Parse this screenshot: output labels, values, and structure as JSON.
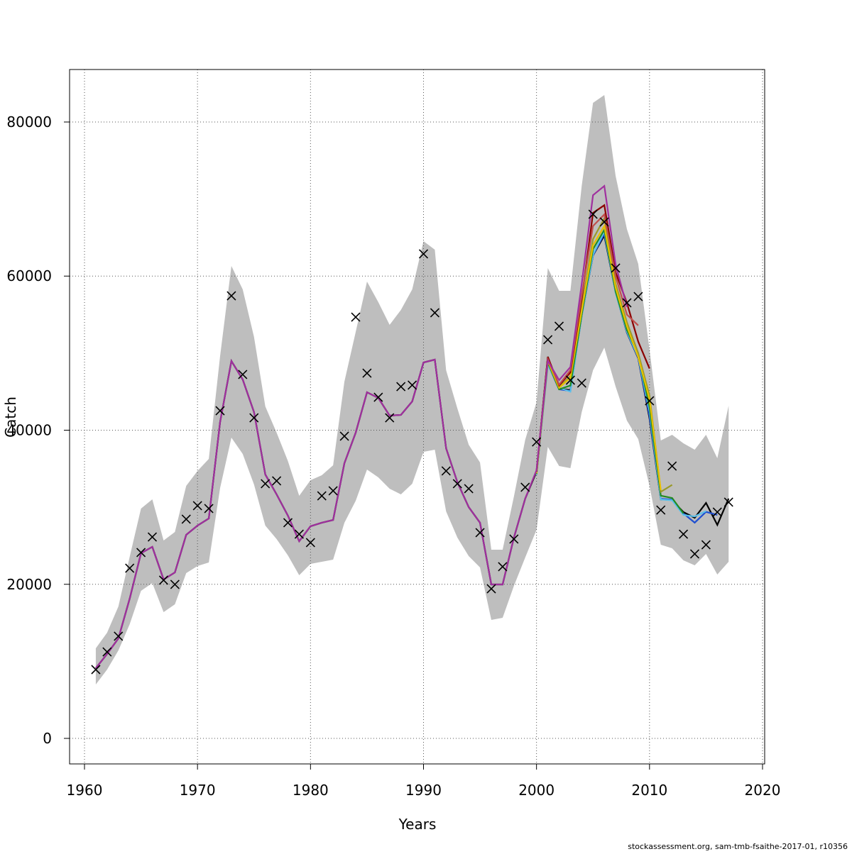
{
  "chart_data": {
    "type": "line",
    "xlabel": "Years",
    "ylabel": "Catch",
    "footer": "stockassessment.org, sam-tmb-fsaithe-2017-01, r10356",
    "x": [
      1961,
      1962,
      1963,
      1964,
      1965,
      1966,
      1967,
      1968,
      1969,
      1970,
      1971,
      1972,
      1973,
      1974,
      1975,
      1976,
      1977,
      1978,
      1979,
      1980,
      1981,
      1982,
      1983,
      1984,
      1985,
      1986,
      1987,
      1988,
      1989,
      1990,
      1991,
      1992,
      1993,
      1994,
      1995,
      1996,
      1997,
      1998,
      1999,
      2000,
      2001,
      2002,
      2003,
      2004,
      2005,
      2006,
      2007,
      2008,
      2009,
      2010,
      2011,
      2012,
      2013,
      2014,
      2015,
      2016,
      2017
    ],
    "xlim": [
      1958.68,
      2020.19
    ],
    "ylim": [
      -3314,
      86812
    ],
    "xticks": [
      1960,
      1970,
      1980,
      1990,
      2000,
      2010,
      2020
    ],
    "yticks": [
      0,
      20000,
      40000,
      60000,
      80000
    ],
    "grid": true,
    "band": {
      "color": "#bebebe",
      "upper": [
        11690,
        13720,
        17120,
        23570,
        29830,
        31020,
        25680,
        26790,
        32770,
        34710,
        36270,
        49620,
        61310,
        58270,
        52110,
        43080,
        39680,
        36000,
        31480,
        33510,
        34150,
        35440,
        46310,
        52750,
        59290,
        56620,
        53670,
        55600,
        58270,
        64530,
        63430,
        47780,
        42810,
        38110,
        35810,
        24490,
        24490,
        31390,
        38760,
        43640,
        61040,
        58090,
        58090,
        71710,
        82490,
        83500,
        73000,
        66100,
        61590,
        50450,
        38670,
        39400,
        38300,
        37470,
        39400,
        36360,
        43180
      ],
      "lower": [
        7000,
        8930,
        11420,
        14820,
        19150,
        20160,
        16390,
        17400,
        21450,
        22370,
        22830,
        32500,
        39030,
        36920,
        32960,
        27620,
        25870,
        23750,
        21170,
        22650,
        22920,
        23200,
        27990,
        30840,
        34890,
        33880,
        32410,
        31670,
        33050,
        37190,
        37470,
        29460,
        26050,
        23660,
        22190,
        15370,
        15650,
        19790,
        23480,
        27070,
        37840,
        35350,
        35070,
        42350,
        47780,
        50730,
        45660,
        41240,
        38850,
        32770,
        25130,
        24670,
        23110,
        22460,
        23940,
        21270,
        22920
      ]
    },
    "observations": {
      "marker": "x",
      "color": "#000000",
      "values": [
        8930,
        11230,
        13260,
        22090,
        24120,
        26140,
        20530,
        19980,
        28450,
        30200,
        29830,
        42530,
        57440,
        47230,
        41610,
        33050,
        33420,
        27990,
        26510,
        25410,
        31480,
        32130,
        39220,
        54680,
        47410,
        44280,
        41610,
        45660,
        45850,
        62880,
        55240,
        34710,
        33050,
        32410,
        26700,
        19420,
        22280,
        25870,
        32590,
        38480,
        51740,
        53490,
        46490,
        46120,
        68030,
        67020,
        61040,
        56530,
        57350,
        43820,
        29640,
        35350,
        26510,
        23940,
        25130,
        29370,
        30660
      ]
    },
    "series": [
      {
        "color": "#000000",
        "values": [
          9110,
          10960,
          12980,
          18140,
          24030,
          24860,
          20620,
          21540,
          26420,
          27620,
          28540,
          41060,
          48980,
          46580,
          42350,
          34250,
          31670,
          28910,
          25590,
          27530,
          27990,
          28350,
          35720,
          39680,
          44920,
          44190,
          41890,
          41980,
          43730,
          48790,
          49160,
          37650,
          33240,
          30020,
          27990,
          19980,
          19980,
          26050,
          31120,
          34620,
          49530,
          45390,
          45200,
          54870,
          62690,
          65270,
          57910,
          52660,
          49340,
          41520,
          31020,
          30930,
          29370,
          28630,
          30560,
          27710,
          31120
        ]
      },
      {
        "color": "#1f4fd0",
        "values": [
          null,
          null,
          null,
          null,
          null,
          null,
          null,
          null,
          null,
          null,
          null,
          null,
          null,
          null,
          null,
          null,
          null,
          null,
          null,
          null,
          null,
          null,
          null,
          null,
          null,
          null,
          null,
          null,
          null,
          null,
          null,
          null,
          null,
          null,
          null,
          null,
          null,
          null,
          null,
          34300,
          48600,
          45300,
          45100,
          54900,
          62700,
          65500,
          57900,
          52700,
          49400,
          41800,
          31100,
          31000,
          29200,
          28000,
          29400,
          29000,
          null
        ]
      },
      {
        "color": "#5bc0eb",
        "values": [
          null,
          null,
          null,
          null,
          null,
          null,
          null,
          null,
          null,
          null,
          null,
          null,
          null,
          null,
          null,
          null,
          null,
          null,
          null,
          null,
          null,
          null,
          null,
          null,
          null,
          null,
          null,
          null,
          null,
          null,
          null,
          null,
          null,
          null,
          null,
          null,
          null,
          null,
          null,
          34200,
          48500,
          45500,
          45000,
          54800,
          62800,
          65800,
          57800,
          52800,
          49500,
          42500,
          31000,
          30900,
          29000,
          28800,
          29500,
          null,
          null
        ]
      },
      {
        "color": "#228b22",
        "values": [
          null,
          null,
          null,
          null,
          null,
          null,
          null,
          null,
          null,
          null,
          null,
          null,
          null,
          null,
          null,
          null,
          null,
          null,
          null,
          null,
          null,
          null,
          null,
          null,
          null,
          null,
          null,
          null,
          null,
          null,
          null,
          null,
          null,
          null,
          null,
          null,
          null,
          null,
          null,
          34300,
          48800,
          45300,
          45800,
          55000,
          63500,
          66000,
          58000,
          53000,
          49800,
          43000,
          31500,
          31200,
          29200,
          null,
          null,
          null,
          null
        ]
      },
      {
        "color": "#9a9a2a",
        "values": [
          null,
          null,
          null,
          null,
          null,
          null,
          null,
          null,
          null,
          null,
          null,
          null,
          null,
          null,
          null,
          null,
          null,
          null,
          null,
          null,
          null,
          null,
          null,
          null,
          null,
          null,
          null,
          null,
          null,
          null,
          null,
          null,
          null,
          null,
          null,
          null,
          null,
          null,
          null,
          34500,
          49300,
          45600,
          47000,
          56000,
          64800,
          67500,
          59000,
          54000,
          50000,
          44500,
          32000,
          32900,
          null,
          null,
          null,
          null,
          null
        ]
      },
      {
        "color": "#e8c000",
        "values": [
          null,
          null,
          null,
          null,
          null,
          null,
          null,
          null,
          null,
          null,
          null,
          null,
          null,
          null,
          null,
          null,
          null,
          null,
          null,
          null,
          null,
          null,
          null,
          null,
          null,
          null,
          null,
          null,
          null,
          null,
          null,
          null,
          null,
          null,
          null,
          null,
          null,
          null,
          null,
          34400,
          49000,
          45500,
          46800,
          55500,
          64000,
          66500,
          58500,
          53500,
          49500,
          44000,
          32200,
          null,
          null,
          null,
          null,
          null,
          null
        ]
      },
      {
        "color": "#8b0000",
        "values": [
          null,
          null,
          null,
          null,
          null,
          null,
          null,
          null,
          null,
          null,
          null,
          null,
          null,
          null,
          null,
          null,
          null,
          null,
          null,
          null,
          null,
          null,
          null,
          null,
          null,
          null,
          null,
          null,
          null,
          null,
          null,
          null,
          null,
          null,
          null,
          null,
          null,
          null,
          null,
          34600,
          49500,
          45800,
          47500,
          57000,
          68200,
          69200,
          60500,
          56500,
          51500,
          48000,
          null,
          null,
          null,
          null,
          null,
          null,
          null
        ]
      },
      {
        "color": "#c0504d",
        "values": [
          null,
          null,
          null,
          null,
          null,
          null,
          null,
          null,
          null,
          null,
          null,
          null,
          null,
          null,
          null,
          null,
          null,
          null,
          null,
          null,
          null,
          null,
          null,
          null,
          null,
          null,
          null,
          null,
          null,
          null,
          null,
          null,
          null,
          null,
          null,
          null,
          null,
          null,
          null,
          34700,
          49200,
          45900,
          47800,
          57500,
          66500,
          68000,
          60000,
          55000,
          53600,
          null,
          null,
          null,
          null,
          null,
          null,
          null,
          null
        ]
      },
      {
        "color": "#a0309e",
        "values": [
          9110,
          10960,
          12980,
          18140,
          24030,
          24860,
          20620,
          21540,
          26420,
          27620,
          28540,
          41060,
          48980,
          46580,
          42350,
          34250,
          31670,
          28910,
          25590,
          27530,
          27990,
          28350,
          35720,
          39680,
          44920,
          44190,
          41890,
          41980,
          43730,
          48790,
          49160,
          37650,
          33240,
          30020,
          27990,
          19980,
          19980,
          26050,
          31120,
          34800,
          49000,
          46500,
          48200,
          59000,
          70500,
          71700,
          61500,
          56000,
          null,
          null,
          null,
          null,
          null,
          null,
          null,
          null,
          null
        ]
      }
    ]
  }
}
